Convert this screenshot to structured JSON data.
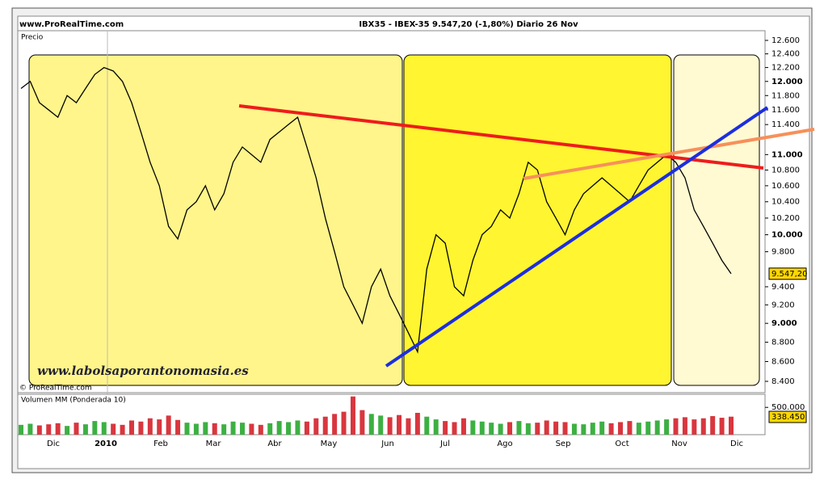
{
  "site": "www.ProRealTime.com",
  "copyright": "© ProRealTime.com",
  "watermark": "www.labolsaporantonomasia.es",
  "months": [
    "Dic",
    "2010",
    "Feb",
    "Mar",
    "Abr",
    "May",
    "Jun",
    "Jul",
    "Ago",
    "Sep",
    "Oct",
    "Nov",
    "Dic"
  ],
  "chart_data": [
    {
      "type": "line",
      "title": "IBX35 - IBEX-35    9.547,20 (-1,80%)    Diario  26 Nov",
      "ylabel": "Precio",
      "color": "#000000",
      "log_scale": true,
      "last_label": "9.547,20",
      "values": [
        11900,
        12000,
        11700,
        11600,
        11500,
        11800,
        11700,
        11900,
        12100,
        12200,
        12150,
        12000,
        11700,
        11300,
        10900,
        10600,
        10100,
        9950,
        10300,
        10400,
        10600,
        10300,
        10500,
        10900,
        11100,
        11000,
        10900,
        11200,
        11300,
        11400,
        11500,
        11100,
        10700,
        10200,
        9800,
        9400,
        9200,
        9000,
        9400,
        9600,
        9300,
        9100,
        8900,
        8700,
        9600,
        10000,
        9900,
        9400,
        9300,
        9700,
        10000,
        10100,
        10300,
        10200,
        10500,
        10900,
        10800,
        10400,
        10200,
        10000,
        10300,
        10500,
        10600,
        10700,
        10600,
        10500,
        10400,
        10600,
        10800,
        10900,
        11000,
        10900,
        10700,
        10300,
        10100,
        9900,
        9700,
        9547
      ],
      "ylim": [
        8400,
        12600
      ],
      "yticks": [
        {
          "value": 12600,
          "label": "12.600"
        },
        {
          "value": 12400,
          "label": "12.400"
        },
        {
          "value": 12200,
          "label": "12.200"
        },
        {
          "value": 12000,
          "label": "12.000"
        },
        {
          "value": 11800,
          "label": "11.800"
        },
        {
          "value": 11600,
          "label": "11.600"
        },
        {
          "value": 11400,
          "label": "11.400"
        },
        {
          "value": 11000,
          "label": "11.000"
        },
        {
          "value": 10800,
          "label": "10.800"
        },
        {
          "value": 10600,
          "label": "10.600"
        },
        {
          "value": 10400,
          "label": "10.400"
        },
        {
          "value": 10200,
          "label": "10.200"
        },
        {
          "value": 10000,
          "label": "10.000"
        },
        {
          "value": 9800,
          "label": "9.800"
        },
        {
          "value": 9400,
          "label": "9.400"
        },
        {
          "value": 9200,
          "label": "9.200"
        },
        {
          "value": 9000,
          "label": "9.000"
        },
        {
          "value": 8800,
          "label": "8.800"
        },
        {
          "value": 8600,
          "label": "8.600"
        },
        {
          "value": 8400,
          "label": "8.400"
        }
      ]
    },
    {
      "type": "bar",
      "title": "Volumen MM (Ponderada 10)",
      "last_label": "338.450",
      "values": [
        180000,
        200000,
        170000,
        190000,
        210000,
        160000,
        220000,
        190000,
        250000,
        230000,
        200000,
        180000,
        260000,
        240000,
        300000,
        280000,
        350000,
        270000,
        220000,
        200000,
        230000,
        210000,
        190000,
        240000,
        220000,
        200000,
        180000,
        210000,
        250000,
        230000,
        260000,
        240000,
        300000,
        330000,
        380000,
        420000,
        700000,
        450000,
        380000,
        350000,
        320000,
        360000,
        300000,
        400000,
        330000,
        280000,
        250000,
        230000,
        300000,
        260000,
        240000,
        220000,
        200000,
        230000,
        250000,
        210000,
        220000,
        260000,
        240000,
        230000,
        200000,
        190000,
        220000,
        240000,
        210000,
        230000,
        250000,
        220000,
        240000,
        260000,
        280000,
        300000,
        320000,
        280000,
        300000,
        340000,
        310000,
        330000
      ],
      "ylim": [
        0,
        740000
      ],
      "yticks": [
        {
          "value": 500000,
          "label": "500.000"
        }
      ]
    }
  ]
}
